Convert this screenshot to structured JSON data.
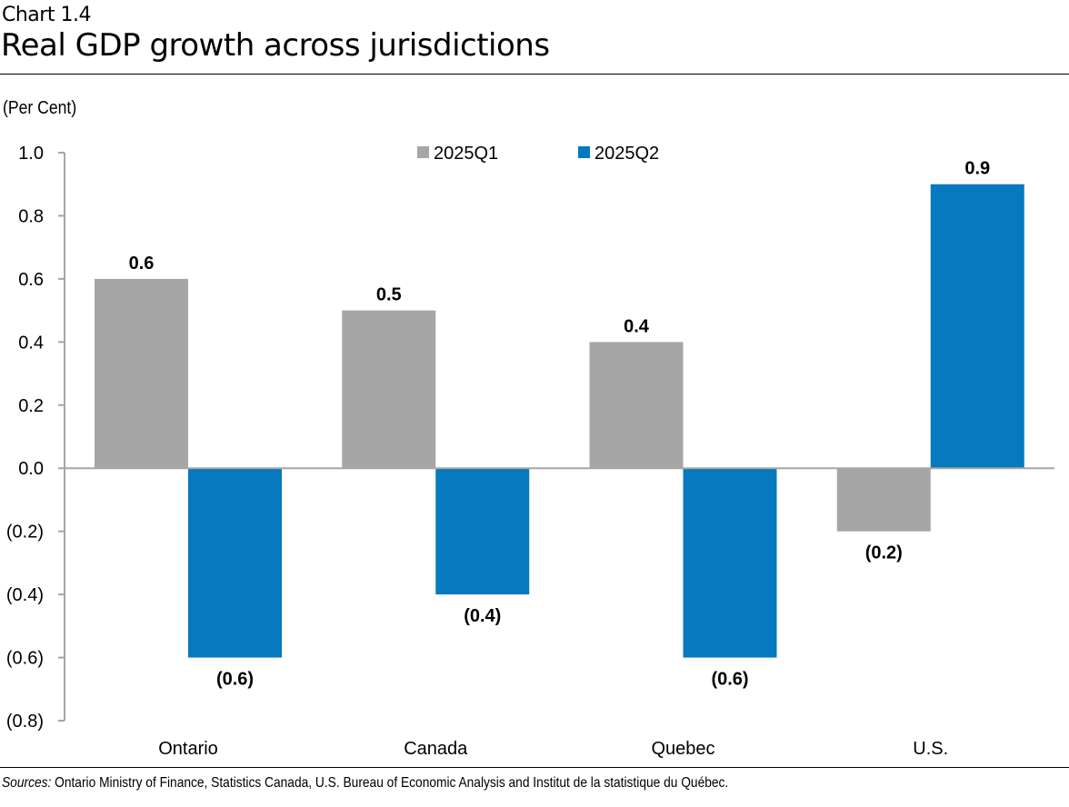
{
  "header": {
    "chart_number": "Chart 1.4",
    "title": "Real GDP growth across jurisdictions"
  },
  "unit_label": "(Per Cent)",
  "footer": {
    "sources_label": "Sources:",
    "sources_text": " Ontario Ministry of Finance, Statistics Canada, U.S. Bureau of Economic Analysis and Institut de la statistique du Québec."
  },
  "chart_data": {
    "type": "bar",
    "title": "Real GDP growth across jurisdictions",
    "xlabel": "",
    "ylabel": "(Per Cent)",
    "categories": [
      "Ontario",
      "Canada",
      "Quebec",
      "U.S."
    ],
    "series": [
      {
        "name": "2025Q1",
        "color": "#a6a6a6",
        "values": [
          0.6,
          0.5,
          0.4,
          -0.2
        ],
        "labels": [
          "0.6",
          "0.5",
          "0.4",
          "(0.2)"
        ]
      },
      {
        "name": "2025Q2",
        "color": "#0779bf",
        "values": [
          -0.6,
          -0.4,
          -0.6,
          0.9
        ],
        "labels": [
          "(0.6)",
          "(0.4)",
          "(0.6)",
          "0.9"
        ]
      }
    ],
    "ylim": [
      -0.8,
      1.0
    ],
    "yticks": [
      1.0,
      0.8,
      0.6,
      0.4,
      0.2,
      0.0,
      -0.2,
      -0.4,
      -0.6,
      -0.8
    ],
    "ytick_labels": [
      "1.0",
      "0.8",
      "0.6",
      "0.4",
      "0.2",
      "0.0",
      "(0.2)",
      "(0.4)",
      "(0.6)",
      "(0.8)"
    ],
    "grid": false,
    "legend_position": "top-center"
  }
}
